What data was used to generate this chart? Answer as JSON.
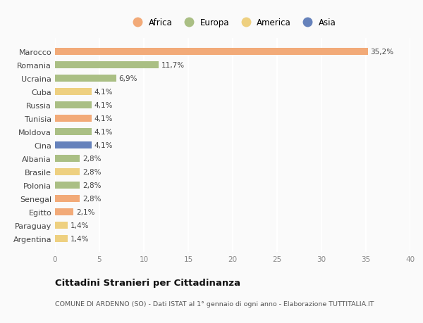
{
  "countries": [
    "Marocco",
    "Romania",
    "Ucraina",
    "Cuba",
    "Russia",
    "Tunisia",
    "Moldova",
    "Cina",
    "Albania",
    "Brasile",
    "Polonia",
    "Senegal",
    "Egitto",
    "Paraguay",
    "Argentina"
  ],
  "values": [
    35.2,
    11.7,
    6.9,
    4.1,
    4.1,
    4.1,
    4.1,
    4.1,
    2.8,
    2.8,
    2.8,
    2.8,
    2.1,
    1.4,
    1.4
  ],
  "labels": [
    "35,2%",
    "11,7%",
    "6,9%",
    "4,1%",
    "4,1%",
    "4,1%",
    "4,1%",
    "4,1%",
    "2,8%",
    "2,8%",
    "2,8%",
    "2,8%",
    "2,1%",
    "1,4%",
    "1,4%"
  ],
  "continents": [
    "Africa",
    "Europa",
    "Europa",
    "America",
    "Europa",
    "Africa",
    "Europa",
    "Asia",
    "Europa",
    "America",
    "Europa",
    "Africa",
    "Africa",
    "America",
    "America"
  ],
  "continent_colors": {
    "Africa": "#F2AA78",
    "Europa": "#AABF84",
    "America": "#EED080",
    "Asia": "#6682BB"
  },
  "legend_order": [
    "Africa",
    "Europa",
    "America",
    "Asia"
  ],
  "title": "Cittadini Stranieri per Cittadinanza",
  "subtitle": "COMUNE DI ARDENNO (SO) - Dati ISTAT al 1° gennaio di ogni anno - Elaborazione TUTTITALIA.IT",
  "xlim": [
    0,
    40
  ],
  "xticks": [
    0,
    5,
    10,
    15,
    20,
    25,
    30,
    35,
    40
  ],
  "bg_color": "#FAFAFA",
  "grid_color": "#FFFFFF"
}
